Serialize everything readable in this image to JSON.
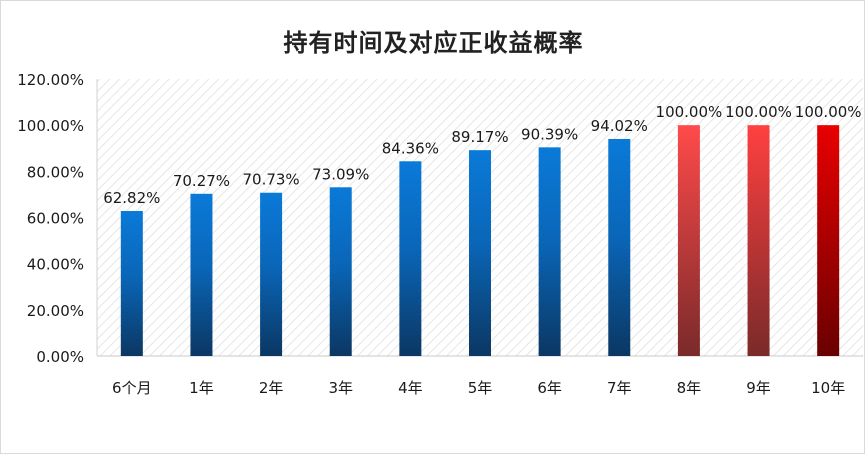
{
  "chart_data": {
    "type": "bar",
    "title": "持有时间及对应正收益概率",
    "categories": [
      "6个月",
      "1年",
      "2年",
      "3年",
      "4年",
      "5年",
      "6年",
      "7年",
      "8年",
      "9年",
      "10年"
    ],
    "values": [
      62.82,
      70.27,
      70.73,
      73.09,
      84.36,
      89.17,
      90.39,
      94.02,
      100.0,
      100.0,
      100.0
    ],
    "data_labels": [
      "62.82%",
      "70.27%",
      "70.73%",
      "73.09%",
      "84.36%",
      "89.17%",
      "90.39%",
      "94.02%",
      "100.00%",
      "100.00%",
      "100.00%"
    ],
    "y_ticks": [
      "0.00%",
      "20.00%",
      "40.00%",
      "60.00%",
      "80.00%",
      "100.00%",
      "120.00%"
    ],
    "ylim": [
      0,
      120
    ],
    "xlabel": "",
    "ylabel": "",
    "grid": false,
    "plot_background": "diagonal hatch",
    "colors": {
      "blue_top": "#0a7ad8",
      "blue_bottom": "#0b3763",
      "red_top": [
        "#ff4a4a",
        "#ff4040",
        "#e80000"
      ],
      "red_bottom": [
        "#7a2a2a",
        "#7a2a2a",
        "#6a0000"
      ]
    }
  }
}
